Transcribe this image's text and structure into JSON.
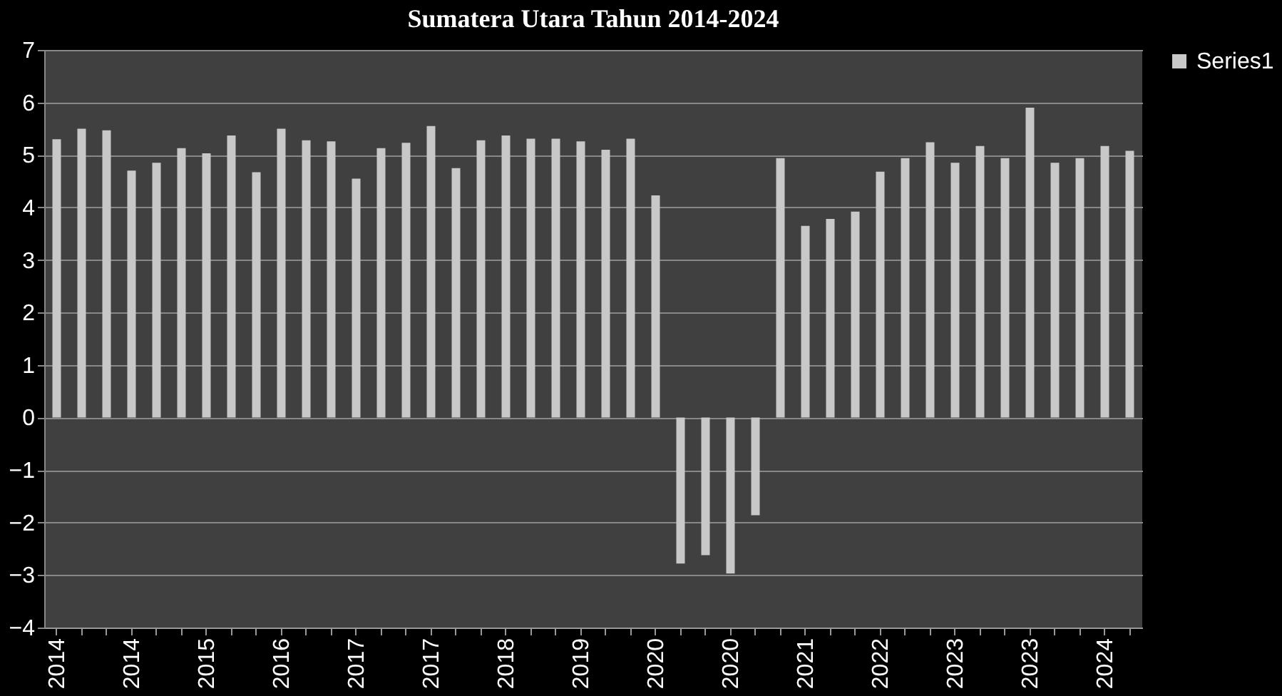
{
  "chart_data": {
    "type": "bar",
    "title": "Sumatera Utara Tahun 2014-2024",
    "categories": [
      "2014",
      null,
      null,
      "2014",
      null,
      null,
      "2015",
      null,
      null,
      "2016",
      null,
      null,
      "2017",
      null,
      null,
      "2017",
      null,
      null,
      "2018",
      null,
      null,
      "2019",
      null,
      null,
      "2020",
      null,
      null,
      "2020",
      null,
      null,
      "2021",
      null,
      null,
      "2022",
      null,
      null,
      "2023",
      null,
      null,
      "2023",
      null,
      null,
      "2024",
      null
    ],
    "series": [
      {
        "name": "Series1",
        "color": "#c8c8c8",
        "values": [
          5.3,
          5.5,
          5.47,
          4.7,
          4.85,
          5.13,
          5.03,
          5.37,
          4.67,
          5.5,
          5.28,
          5.26,
          4.55,
          5.13,
          5.23,
          5.55,
          4.75,
          5.28,
          5.37,
          5.31,
          5.31,
          5.26,
          5.1,
          5.31,
          4.23,
          -2.78,
          -2.62,
          -2.97,
          -1.86,
          4.94,
          3.65,
          3.78,
          3.92,
          4.68,
          4.94,
          5.24,
          4.85,
          5.17,
          4.94,
          5.9,
          4.85,
          4.94,
          5.17,
          5.08
        ]
      }
    ],
    "ylim": [
      -4,
      7
    ],
    "yticks": [
      -4,
      -3,
      -2,
      -1,
      0,
      1,
      2,
      3,
      4,
      5,
      6,
      7
    ],
    "grid": "y",
    "legend": "right"
  }
}
